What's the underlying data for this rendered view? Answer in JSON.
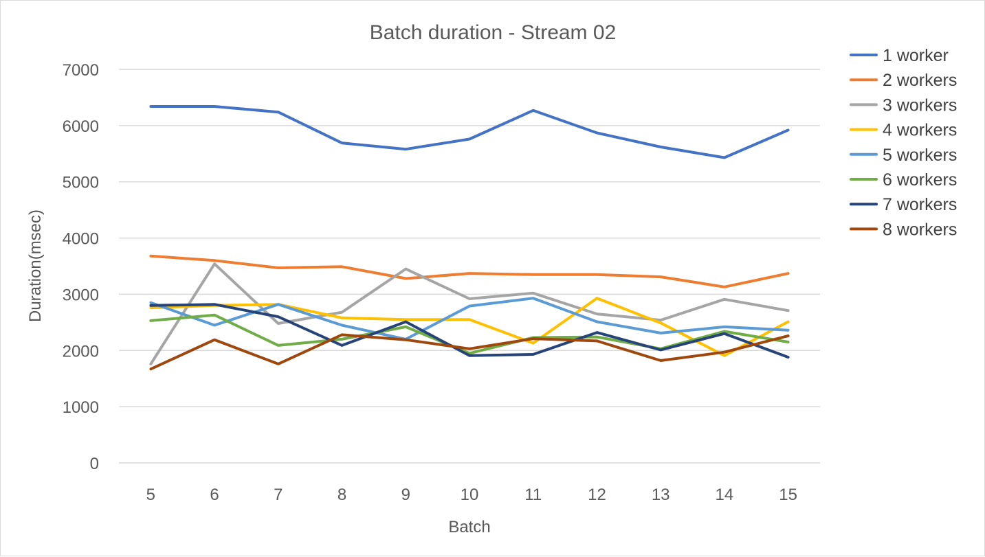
{
  "chart_data": {
    "type": "line",
    "title": "Batch duration - Stream 02",
    "xlabel": "Batch",
    "ylabel": "Duration(msec)",
    "x": [
      5,
      6,
      7,
      8,
      9,
      10,
      11,
      12,
      13,
      14,
      15
    ],
    "ylim": [
      0,
      7000
    ],
    "yticks": [
      0,
      1000,
      2000,
      3000,
      4000,
      5000,
      6000,
      7000
    ],
    "grid": true,
    "legend": "right",
    "series": [
      {
        "name": "1 worker",
        "color": "#4472C4",
        "values": [
          6340,
          6340,
          6240,
          5690,
          5580,
          5760,
          6270,
          5870,
          5620,
          5430,
          5920
        ]
      },
      {
        "name": "2 workers",
        "color": "#ED7D31",
        "values": [
          3680,
          3600,
          3470,
          3490,
          3280,
          3370,
          3350,
          3350,
          3310,
          3130,
          3370
        ]
      },
      {
        "name": "3 workers",
        "color": "#A5A5A5",
        "values": [
          1760,
          3540,
          2480,
          2680,
          3450,
          2920,
          3020,
          2650,
          2540,
          2910,
          2710
        ]
      },
      {
        "name": "4 workers",
        "color": "#FFC000",
        "values": [
          2760,
          2800,
          2820,
          2580,
          2550,
          2550,
          2130,
          2930,
          2490,
          1910,
          2510
        ]
      },
      {
        "name": "5 workers",
        "color": "#5B9BD5",
        "values": [
          2850,
          2450,
          2820,
          2450,
          2200,
          2790,
          2930,
          2510,
          2310,
          2420,
          2360
        ]
      },
      {
        "name": "6 workers",
        "color": "#70AD47",
        "values": [
          2530,
          2630,
          2090,
          2200,
          2420,
          1950,
          2230,
          2240,
          2030,
          2340,
          2150
        ]
      },
      {
        "name": "7 workers",
        "color": "#264478",
        "values": [
          2800,
          2820,
          2600,
          2090,
          2510,
          1910,
          1930,
          2320,
          2010,
          2300,
          1880
        ]
      },
      {
        "name": "8 workers",
        "color": "#9E480E",
        "values": [
          1670,
          2190,
          1760,
          2280,
          2190,
          2030,
          2210,
          2170,
          1820,
          1970,
          2260
        ]
      }
    ]
  }
}
